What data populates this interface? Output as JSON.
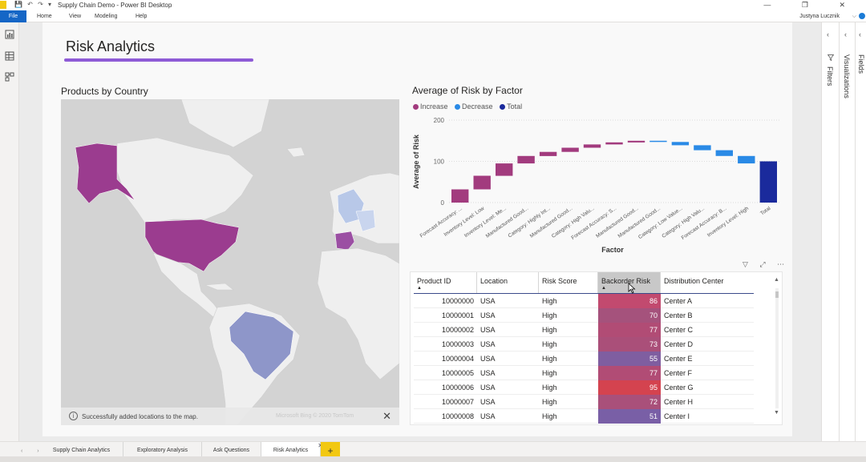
{
  "titlebar": {
    "window_title": "Supply Chain Demo - Power BI Desktop",
    "quick_access": "💾 ↶ ↷ ▾",
    "window_controls": "— ❐ ✕"
  },
  "ribbon": {
    "file_label": "File",
    "tabs": [
      "Home",
      "View",
      "Modeling",
      "Help"
    ],
    "user_name": "Justyna Lucznik",
    "user_chevron": "⌵"
  },
  "page": {
    "title": "Risk Analytics"
  },
  "map": {
    "title": "Products by Country",
    "status_message": "Successfully added locations to the map.",
    "info_glyph": "i",
    "faint_text": "Microsoft Bing © 2020 TomTom",
    "close_glyph": "✕",
    "colors": {
      "usa": "#9b3c8f",
      "brazil": "#8e96c9",
      "spain": "#9b4fa3",
      "europe_light": "#b8c8e8",
      "land": "#f2f2f2",
      "water": "#d3d3d3"
    }
  },
  "chart_data": {
    "type": "waterfall",
    "title": "Average of Risk by Factor",
    "xlabel": "Factor",
    "ylabel": "Average of Risk",
    "ylim": [
      0,
      200
    ],
    "yticks": [
      0,
      100,
      200
    ],
    "legend": [
      {
        "label": "Increase",
        "color": "#a23b7e"
      },
      {
        "label": "Decrease",
        "color": "#2a8ae6"
      },
      {
        "label": "Total",
        "color": "#1a2a9c"
      }
    ],
    "categories": [
      "Forecast Accuracy: ...",
      "Inventory Level: Low",
      "Inventory Level: Me...",
      "Manufactured Good...",
      "Category: Highly Int...",
      "Manufactured Good...",
      "Category: High Valu...",
      "Forecast Accuracy: S...",
      "Manufactured Good...",
      "Manufactured Good...",
      "Category: Low Value...",
      "Category: High Valu...",
      "Forecast Accuracy: B...",
      "Inventory Level: High",
      "Total"
    ],
    "values": [
      32,
      33,
      30,
      18,
      10,
      10,
      8,
      5,
      4,
      -3,
      -8,
      -12,
      -14,
      -18,
      100
    ],
    "kinds": [
      "increase",
      "increase",
      "increase",
      "increase",
      "increase",
      "increase",
      "increase",
      "increase",
      "increase",
      "decrease",
      "decrease",
      "decrease",
      "decrease",
      "decrease",
      "total"
    ]
  },
  "table": {
    "columns": [
      "Product ID",
      "Location",
      "Risk Score",
      "Backorder Risk",
      "Distribution Center"
    ],
    "sorted_column": "Backorder Risk",
    "sort_glyph": "▲",
    "rows": [
      {
        "id": "10000000",
        "location": "USA",
        "score": "High",
        "risk": "86",
        "dc": "Center A",
        "color": "#c24a6f"
      },
      {
        "id": "10000001",
        "location": "USA",
        "score": "High",
        "risk": "70",
        "dc": "Center B",
        "color": "#a5527c"
      },
      {
        "id": "10000002",
        "location": "USA",
        "score": "High",
        "risk": "77",
        "dc": "Center C",
        "color": "#b14c75"
      },
      {
        "id": "10000003",
        "location": "USA",
        "score": "High",
        "risk": "73",
        "dc": "Center D",
        "color": "#aa4f79"
      },
      {
        "id": "10000004",
        "location": "USA",
        "score": "High",
        "risk": "55",
        "dc": "Center E",
        "color": "#7f5ea0"
      },
      {
        "id": "10000005",
        "location": "USA",
        "score": "High",
        "risk": "77",
        "dc": "Center F",
        "color": "#b14c75"
      },
      {
        "id": "10000006",
        "location": "USA",
        "score": "High",
        "risk": "95",
        "dc": "Center G",
        "color": "#d4434f"
      },
      {
        "id": "10000007",
        "location": "USA",
        "score": "High",
        "risk": "72",
        "dc": "Center H",
        "color": "#a9507a"
      },
      {
        "id": "10000008",
        "location": "USA",
        "score": "High",
        "risk": "51",
        "dc": "Center I",
        "color": "#795fa6"
      }
    ]
  },
  "panes": {
    "filters": "Filters",
    "visualizations": "Visualizations",
    "fields": "Fields",
    "chevron": "‹"
  },
  "vis_tools": "▽ ⤢ ⋯",
  "bottom_tabs": {
    "nav": "‹ ›",
    "tabs": [
      "Supply Chain Analytics",
      "Exploratory Analysis",
      "Ask Questions",
      "Risk Analytics"
    ],
    "active": "Risk Analytics",
    "close_glyph": "✕",
    "add_glyph": "+"
  }
}
